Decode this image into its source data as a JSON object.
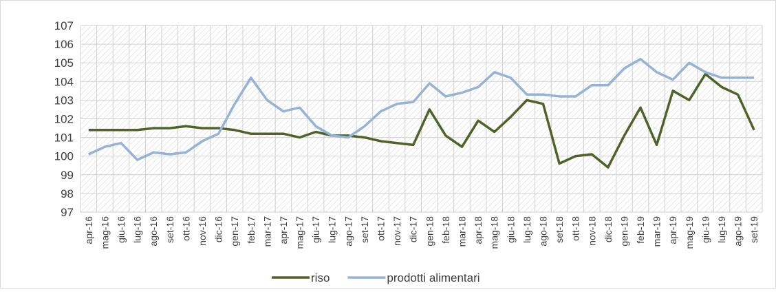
{
  "chart_data": {
    "type": "line",
    "categories": [
      "apr-16",
      "mag-16",
      "giu-16",
      "lug-16",
      "ago-16",
      "set-16",
      "ott-16",
      "nov-16",
      "dic-16",
      "gen-17",
      "feb-17",
      "mar-17",
      "apr-17",
      "mag-17",
      "giu-17",
      "lug-17",
      "ago-17",
      "set-17",
      "ott-17",
      "nov-17",
      "dic-17",
      "gen-18",
      "feb-18",
      "mar-18",
      "apr-18",
      "mag-18",
      "giu-18",
      "lug-18",
      "ago-18",
      "set-18",
      "ott-18",
      "nov-18",
      "dic-18",
      "gen-19",
      "feb-19",
      "mar-19",
      "apr-19",
      "mag-19",
      "giu-19",
      "lug-19",
      "ago-19",
      "set-19"
    ],
    "series": [
      {
        "name": "riso",
        "color": "#4f6228",
        "values": [
          101.4,
          101.4,
          101.4,
          101.4,
          101.5,
          101.5,
          101.6,
          101.5,
          101.5,
          101.4,
          101.2,
          101.2,
          101.2,
          101.0,
          101.3,
          101.1,
          101.1,
          101.0,
          100.8,
          100.7,
          100.6,
          102.5,
          101.1,
          100.5,
          101.9,
          101.3,
          102.1,
          103.0,
          102.8,
          99.6,
          100.0,
          100.1,
          99.4,
          101.1,
          102.6,
          100.6,
          103.5,
          103.0,
          104.4,
          103.7,
          103.3,
          101.4
        ]
      },
      {
        "name": "prodotti alimentari",
        "color": "#95b3d7",
        "values": [
          100.1,
          100.5,
          100.7,
          99.8,
          100.2,
          100.1,
          100.2,
          100.8,
          101.2,
          102.8,
          104.2,
          103.0,
          102.4,
          102.6,
          101.6,
          101.1,
          101.0,
          101.6,
          102.4,
          102.8,
          102.9,
          103.9,
          103.2,
          103.4,
          103.7,
          104.5,
          104.2,
          103.3,
          103.3,
          103.2,
          103.2,
          103.8,
          103.8,
          104.7,
          105.2,
          104.5,
          104.1,
          105.0,
          104.5,
          104.2,
          104.2,
          104.2
        ]
      }
    ],
    "ylim": [
      97,
      107
    ],
    "yticks": [
      97,
      98,
      99,
      100,
      101,
      102,
      103,
      104,
      105,
      106,
      107
    ],
    "grid": true,
    "legend": "bottom"
  }
}
